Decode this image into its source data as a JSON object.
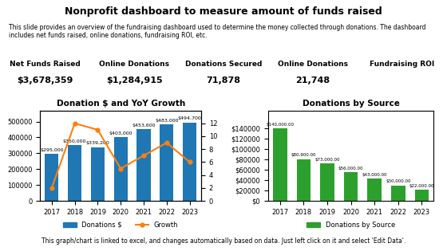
{
  "title": "Nonprofit dashboard to measure amount of funds raised",
  "subtitle": "This slide provides an overview of the fundraising dashboard used to determine the money collected through donations. The dashboard includes net funds raised, online donations, fundraising ROI, etc.",
  "annotations": [
    "This graph/chart is linked to excel, and changes automatically based on data. Just left click on it and select 'Edit Data'."
  ],
  "kpis": [
    {
      "name": "Net Funds Raised",
      "label": "$3,678,359"
    },
    {
      "name": "Online Donations",
      "label": "$1,284,915"
    },
    {
      "name": "Donations Secured",
      "label": "71,878"
    },
    {
      "name": "Online Donations",
      "label": "21,748"
    },
    {
      "name": "Fundraising ROI"
    }
  ],
  "chart_data": [
    {
      "type": "bar",
      "title": "Donation $ and YoY Growth",
      "categories": [
        "2017",
        "2018",
        "2019",
        "2020",
        "2021",
        "2022",
        "2023"
      ],
      "series": [
        {
          "name": "Donations $",
          "type": "bar",
          "values": [
            295000,
            350000,
            339200,
            403000,
            453600,
            483000,
            494700
          ],
          "value_labels": [
            "$295,000",
            "$350,000",
            "$339,200",
            "$403,000",
            "$453,600",
            "$483,000",
            "$494,700"
          ]
        },
        {
          "name": "Growth",
          "type": "line",
          "axis": "y2",
          "marker": "o",
          "values": [
            2,
            12,
            11,
            5,
            7,
            9,
            6
          ]
        }
      ],
      "ylim": [
        0,
        570000
      ],
      "yticks": [
        0,
        100000,
        200000,
        300000,
        400000,
        500000
      ],
      "y2lim": [
        0,
        14
      ],
      "y2ticks": [
        0,
        2,
        4,
        6,
        8,
        10,
        12
      ],
      "data_labels": true,
      "legend": "upper center",
      "grid": false
    },
    {
      "type": "bar",
      "title": "Donations by Source",
      "categories": [
        "2017",
        "2018",
        "2019",
        "2020",
        "2021",
        "2022",
        "2023"
      ],
      "series": [
        {
          "name": "Donations by Source",
          "type": "bar",
          "values": [
            140000,
            80900,
            73000,
            56000,
            43000,
            30000,
            22000
          ],
          "value_labels": [
            "$140,000.00",
            "$80,900.00",
            "$73,000.00",
            "$56,000.00",
            "$43,000.00",
            "$30,000.00",
            "$22,000.00"
          ]
        }
      ],
      "ylim": [
        0,
        175000
      ],
      "yticks": [
        {
          "value": 0,
          "label": "$0"
        },
        {
          "value": 20000,
          "label": "$20000"
        },
        {
          "value": 40000,
          "label": "$40000"
        },
        {
          "value": 60000,
          "label": "$60000"
        },
        {
          "value": 80000,
          "label": "$80000"
        },
        {
          "value": 100000,
          "label": "$100000"
        },
        {
          "value": 120000,
          "label": "$120000"
        },
        {
          "value": 140000,
          "label": "$140000"
        }
      ],
      "data_labels": true,
      "legend": "upper center",
      "grid": false
    }
  ]
}
